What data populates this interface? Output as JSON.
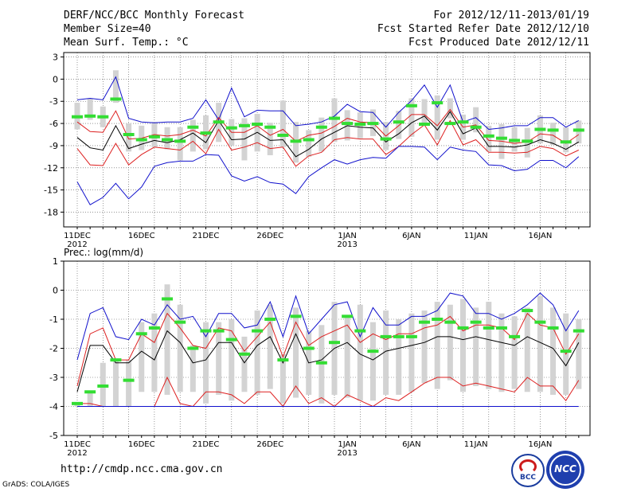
{
  "header": {
    "title": "DERF/NCC/BCC Monthly Forecast",
    "member_size": "Member Size=40",
    "variable": "Mean Surf. Temp.: °C",
    "period": "For 2012/12/11-2013/01/19",
    "start_date": "Fcst Started Refer Date 2012/12/10",
    "produced_date": "Fcst Produced Date 2012/12/11"
  },
  "footer": {
    "url": "http://cmdp.ncc.cma.gov.cn",
    "credit": "GrADS: COLA/IGES",
    "logo_bcc": "BCC",
    "logo_ncc": "NCC"
  },
  "colors": {
    "grid": "#555555",
    "box": "#d3d3d3",
    "median": "#33dd33",
    "mean": "#000000",
    "spread": "#dd2020",
    "extreme": "#1010cc"
  },
  "chart_data": [
    {
      "type": "line",
      "name": "temperature",
      "ylabel": "Mean Surf. Temp.: °C",
      "xlim": [
        0,
        40
      ],
      "ylim": [
        -20,
        3.6
      ],
      "yticks": [
        3,
        0,
        -3,
        -6,
        -9,
        -12,
        -15,
        -18
      ],
      "ytick_labels": [
        "3",
        "0",
        "-3",
        "-6",
        "-9",
        "-12",
        "-15",
        "-18"
      ],
      "xticks": [
        {
          "x": 0,
          "label": "11DEC",
          "sub": "2012"
        },
        {
          "x": 5,
          "label": "16DEC",
          "sub": ""
        },
        {
          "x": 10,
          "label": "21DEC",
          "sub": ""
        },
        {
          "x": 15,
          "label": "26DEC",
          "sub": ""
        },
        {
          "x": 21,
          "label": "1JAN",
          "sub": "2013"
        },
        {
          "x": 26,
          "label": "6JAN",
          "sub": ""
        },
        {
          "x": 31,
          "label": "11JAN",
          "sub": ""
        },
        {
          "x": 36,
          "label": "16JAN",
          "sub": ""
        }
      ],
      "grid": true,
      "days": [
        0,
        1,
        2,
        3,
        4,
        5,
        6,
        7,
        8,
        9,
        10,
        11,
        12,
        13,
        14,
        15,
        16,
        17,
        18,
        19,
        20,
        21,
        22,
        23,
        24,
        25,
        26,
        27,
        28,
        29,
        30,
        31,
        32,
        33,
        34,
        35,
        36,
        37,
        38,
        39
      ],
      "box_low": [
        -6.8,
        -5.5,
        -6.5,
        -3.2,
        -9.8,
        -9.6,
        -9.2,
        -9.5,
        -11,
        -9.8,
        -9.5,
        -8.5,
        -9,
        -11,
        -9.8,
        -10.3,
        -9.2,
        -11.3,
        -10.5,
        -9.8,
        -8.5,
        -8.3,
        -8,
        -7.7,
        -9.6,
        -8.1,
        -7.8,
        -6.3,
        -8.2,
        -5.3,
        -8.2,
        -7.2,
        -9.8,
        -10.8,
        -9.8,
        -10.6,
        -8.7,
        -8.9,
        -9.9,
        -8.7
      ],
      "box_high": [
        -3.2,
        -2.6,
        -3.7,
        1.2,
        -6,
        -6.3,
        -5.8,
        -6.5,
        -6.5,
        -5.5,
        -4.9,
        -3.2,
        -5.4,
        -5.3,
        -4.7,
        -5.9,
        -2.9,
        -5.8,
        -6.9,
        -5.2,
        -2.6,
        -4.2,
        -4.5,
        -4.1,
        -5.8,
        -4.3,
        -2.6,
        -2.7,
        -2.2,
        -2.6,
        -4.8,
        -3.8,
        -6.3,
        -6.1,
        -6.5,
        -6.6,
        -4.9,
        -5.9,
        -6.5,
        -5.6
      ],
      "median": [
        -5.1,
        -5,
        -5.1,
        -2.7,
        -7.5,
        -8.2,
        -7.8,
        -8.2,
        -8.4,
        -6.5,
        -7.3,
        -5.8,
        -6.6,
        -6.3,
        -6.1,
        -6.5,
        -7.6,
        -8.4,
        -8.2,
        -6.5,
        -5.3,
        -6,
        -6.1,
        -6,
        -8.1,
        -5.8,
        -3.6,
        -6.1,
        -3.2,
        -6,
        -5.8,
        -6.5,
        -7.7,
        -8,
        -8.3,
        -8.4,
        -6.8,
        -6.9,
        -8.5,
        -6.9
      ],
      "series": [
        {
          "name": "ensemble-max",
          "role": "extreme",
          "values": [
            -2.8,
            -2.6,
            -2.8,
            0.3,
            -5.3,
            -5.8,
            -5.9,
            -5.8,
            -5.8,
            -5.3,
            -2.8,
            -5.5,
            -1.2,
            -5.1,
            -4.2,
            -4.3,
            -4.3,
            -6.3,
            -6.1,
            -5.8,
            -5,
            -3.4,
            -4.4,
            -4.5,
            -6.5,
            -4.5,
            -2.9,
            -0.8,
            -3.8,
            -0.8,
            -5.8,
            -5.2,
            -6.8,
            -6.6,
            -6.3,
            -6.3,
            -5.2,
            -5.2,
            -6.5,
            -5.6
          ]
        },
        {
          "name": "mean-plus-sd",
          "role": "spread",
          "values": [
            -5.8,
            -7.1,
            -7.2,
            -4.3,
            -8.1,
            -8,
            -7.5,
            -7.7,
            -7.5,
            -6.9,
            -7.7,
            -5.2,
            -7.2,
            -7.2,
            -6.3,
            -7.6,
            -6.8,
            -8.4,
            -7.6,
            -7.3,
            -6.4,
            -5.3,
            -5.8,
            -5.9,
            -7.7,
            -6.3,
            -4.8,
            -4.8,
            -6.3,
            -4.1,
            -6.5,
            -6.2,
            -8.3,
            -8.4,
            -8.7,
            -8.5,
            -7.4,
            -7.6,
            -8.7,
            -7.5
          ]
        },
        {
          "name": "ensemble-mean",
          "role": "mean",
          "values": [
            -7.9,
            -9.3,
            -9.6,
            -6.3,
            -9.4,
            -8.8,
            -8.3,
            -8.6,
            -8.2,
            -7.3,
            -8.6,
            -5.6,
            -8.2,
            -8.1,
            -7.2,
            -8.3,
            -8.2,
            -10.5,
            -9.5,
            -8.1,
            -7.2,
            -6.3,
            -6.5,
            -6.6,
            -8.5,
            -7.4,
            -5.9,
            -5,
            -6.9,
            -4.4,
            -7.4,
            -6.6,
            -9.1,
            -9.1,
            -9.2,
            -8.9,
            -8.2,
            -8.7,
            -9.5,
            -8.5
          ]
        },
        {
          "name": "mean-minus-sd",
          "role": "spread",
          "values": [
            -9.4,
            -11.6,
            -11.7,
            -8.7,
            -11.6,
            -10.2,
            -9.2,
            -9.4,
            -9.6,
            -8.4,
            -10.1,
            -6.8,
            -9.6,
            -9.2,
            -8.6,
            -9.4,
            -9.2,
            -11.8,
            -10.4,
            -9.9,
            -8.2,
            -7.9,
            -8.1,
            -8.1,
            -10.2,
            -9.1,
            -7.5,
            -6.2,
            -8.9,
            -5.6,
            -8.9,
            -8.2,
            -9.9,
            -9.9,
            -10,
            -9.9,
            -9.1,
            -9.4,
            -10.4,
            -9.6
          ]
        },
        {
          "name": "ensemble-min",
          "role": "extreme",
          "values": [
            -13.9,
            -17,
            -16,
            -14.1,
            -16.2,
            -14.6,
            -11.8,
            -11.3,
            -11.1,
            -11.1,
            -10.2,
            -10.3,
            -13.1,
            -13.8,
            -13.2,
            -14,
            -14.2,
            -15.5,
            -13.2,
            -12,
            -10.9,
            -11.5,
            -10.9,
            -10.6,
            -10.7,
            -9.1,
            -9.1,
            -9.2,
            -10.9,
            -9.2,
            -9.6,
            -9.8,
            -11.6,
            -11.7,
            -12.4,
            -12.2,
            -11,
            -11,
            -12,
            -10.5
          ]
        }
      ]
    },
    {
      "type": "line",
      "name": "precipitation",
      "ylabel": "Prec.: log(mm/d)",
      "xlim": [
        0,
        40
      ],
      "ylim": [
        -5,
        1
      ],
      "yticks": [
        1,
        0,
        -1,
        -2,
        -3,
        -4,
        -5
      ],
      "ytick_labels": [
        "1",
        "0",
        "-1",
        "-2",
        "-3",
        "-4",
        "-5"
      ],
      "xticks": [
        {
          "x": 0,
          "label": "11DEC",
          "sub": "2012"
        },
        {
          "x": 5,
          "label": "16DEC",
          "sub": ""
        },
        {
          "x": 10,
          "label": "21DEC",
          "sub": ""
        },
        {
          "x": 15,
          "label": "26DEC",
          "sub": ""
        },
        {
          "x": 21,
          "label": "1JAN",
          "sub": "2013"
        },
        {
          "x": 26,
          "label": "6JAN",
          "sub": ""
        },
        {
          "x": 31,
          "label": "11JAN",
          "sub": ""
        },
        {
          "x": 36,
          "label": "16JAN",
          "sub": ""
        }
      ],
      "grid": true,
      "days": [
        0,
        1,
        2,
        3,
        4,
        5,
        6,
        7,
        8,
        9,
        10,
        11,
        12,
        13,
        14,
        15,
        16,
        17,
        18,
        19,
        20,
        21,
        22,
        23,
        24,
        25,
        26,
        27,
        28,
        29,
        30,
        31,
        32,
        33,
        34,
        35,
        36,
        37,
        38,
        39
      ],
      "box_low": [
        -4,
        -4,
        -4,
        -4,
        -4,
        -3.5,
        -3.5,
        -3.6,
        -3.5,
        -3.5,
        -3.9,
        -3.6,
        -3.8,
        -3.5,
        -3.6,
        -3.4,
        -3.9,
        -3.7,
        -3.6,
        -3.9,
        -3.6,
        -3.7,
        -3.8,
        -3.8,
        -3.6,
        -3.6,
        -3.5,
        -3.2,
        -3.4,
        -3.1,
        -3.5,
        -3.3,
        -3.4,
        -3.5,
        -3.4,
        -3.5,
        -3.5,
        -3.6,
        -3.6,
        -3.4
      ],
      "box_high": [
        -3.9,
        -3.5,
        -2.5,
        -2.4,
        -2.4,
        -1.1,
        -0.8,
        0.2,
        -0.5,
        -1.9,
        -1.1,
        -1.1,
        -1,
        -1.6,
        -0.7,
        -0.5,
        -2.2,
        -0.6,
        -1.4,
        -1.2,
        -0.4,
        -0.9,
        -0.5,
        -1.1,
        -0.7,
        -1,
        -0.8,
        -0.7,
        -0.4,
        -0.5,
        -0.3,
        -0.6,
        -0.4,
        -0.8,
        -0.9,
        -0.6,
        -0.2,
        -0.6,
        -0.8,
        -1
      ],
      "median": [
        -3.9,
        -3.5,
        -3.3,
        -2.4,
        -3.1,
        -1.5,
        -1.3,
        -0.3,
        -1.1,
        -2,
        -1.4,
        -1.4,
        -1.7,
        -2.2,
        -1.4,
        -1,
        -2.4,
        -0.9,
        -2,
        -2.5,
        -1.8,
        -0.9,
        -1.4,
        -2.1,
        -1.6,
        -1.6,
        -1.6,
        -1.1,
        -1,
        -1.1,
        -1.3,
        -1.1,
        -1.3,
        -1.3,
        -1.6,
        -0.7,
        -1.1,
        -1.3,
        -2.1,
        -1.4
      ],
      "series": [
        {
          "name": "ensemble-max",
          "role": "extreme",
          "values": [
            -2.4,
            -0.8,
            -0.6,
            -1.6,
            -1.7,
            -1,
            -1.2,
            -0.5,
            -1,
            -0.9,
            -1.6,
            -0.8,
            -0.8,
            -1.3,
            -1.2,
            -0.4,
            -1.6,
            -0.2,
            -1.5,
            -1,
            -0.5,
            -0.4,
            -1.6,
            -0.6,
            -1.2,
            -1.2,
            -0.9,
            -0.9,
            -0.7,
            -0.1,
            -0.2,
            -0.8,
            -0.8,
            -1,
            -0.8,
            -0.5,
            -0.1,
            -0.5,
            -1.4,
            -0.7
          ]
        },
        {
          "name": "mean-plus-sd",
          "role": "spread",
          "values": [
            -3.3,
            -1.5,
            -1.3,
            -2.4,
            -2.4,
            -1.5,
            -1.8,
            -0.8,
            -1.3,
            -1.9,
            -2,
            -1.3,
            -1.4,
            -2.1,
            -1.6,
            -1.1,
            -2.3,
            -1.1,
            -1.9,
            -1.6,
            -1.4,
            -1.2,
            -1.8,
            -1.5,
            -1.7,
            -1.5,
            -1.5,
            -1.3,
            -1.2,
            -0.9,
            -1.4,
            -1.2,
            -1.2,
            -1.3,
            -1.7,
            -0.8,
            -1.2,
            -1.3,
            -2.2,
            -1.5
          ]
        },
        {
          "name": "ensemble-mean",
          "role": "mean",
          "values": [
            -3.5,
            -1.9,
            -1.9,
            -2.5,
            -2.5,
            -2.1,
            -2.4,
            -1.4,
            -1.8,
            -2.5,
            -2.4,
            -1.8,
            -1.8,
            -2.5,
            -1.9,
            -1.6,
            -2.5,
            -1.5,
            -2.5,
            -2.4,
            -2,
            -1.8,
            -2.2,
            -2.4,
            -2.1,
            -2,
            -1.9,
            -1.8,
            -1.6,
            -1.6,
            -1.7,
            -1.6,
            -1.7,
            -1.8,
            -1.9,
            -1.6,
            -1.8,
            -2,
            -2.6,
            -1.8
          ]
        },
        {
          "name": "mean-minus-sd",
          "role": "spread",
          "values": [
            -3.9,
            -3.9,
            -4,
            -4,
            -4,
            -4,
            -4,
            -3,
            -3.9,
            -4,
            -3.5,
            -3.5,
            -3.6,
            -3.9,
            -3.5,
            -3.5,
            -4,
            -3.3,
            -3.9,
            -3.7,
            -4,
            -3.6,
            -3.8,
            -4,
            -3.7,
            -3.8,
            -3.5,
            -3.2,
            -3,
            -3,
            -3.3,
            -3.2,
            -3.3,
            -3.4,
            -3.5,
            -3,
            -3.3,
            -3.3,
            -3.8,
            -3.1
          ]
        },
        {
          "name": "ensemble-min",
          "role": "extreme",
          "values": [
            -4,
            -4,
            -4,
            -4,
            -4,
            -4,
            -4,
            -4,
            -4,
            -4,
            -4,
            -4,
            -4,
            -4,
            -4,
            -4,
            -4,
            -4,
            -4,
            -4,
            -4,
            -4,
            -4,
            -4,
            -4,
            -4,
            -4,
            -4,
            -4,
            -4,
            -4,
            -4,
            -4,
            -4,
            -4,
            -4,
            -4,
            -4,
            -4,
            -4
          ]
        }
      ]
    }
  ]
}
